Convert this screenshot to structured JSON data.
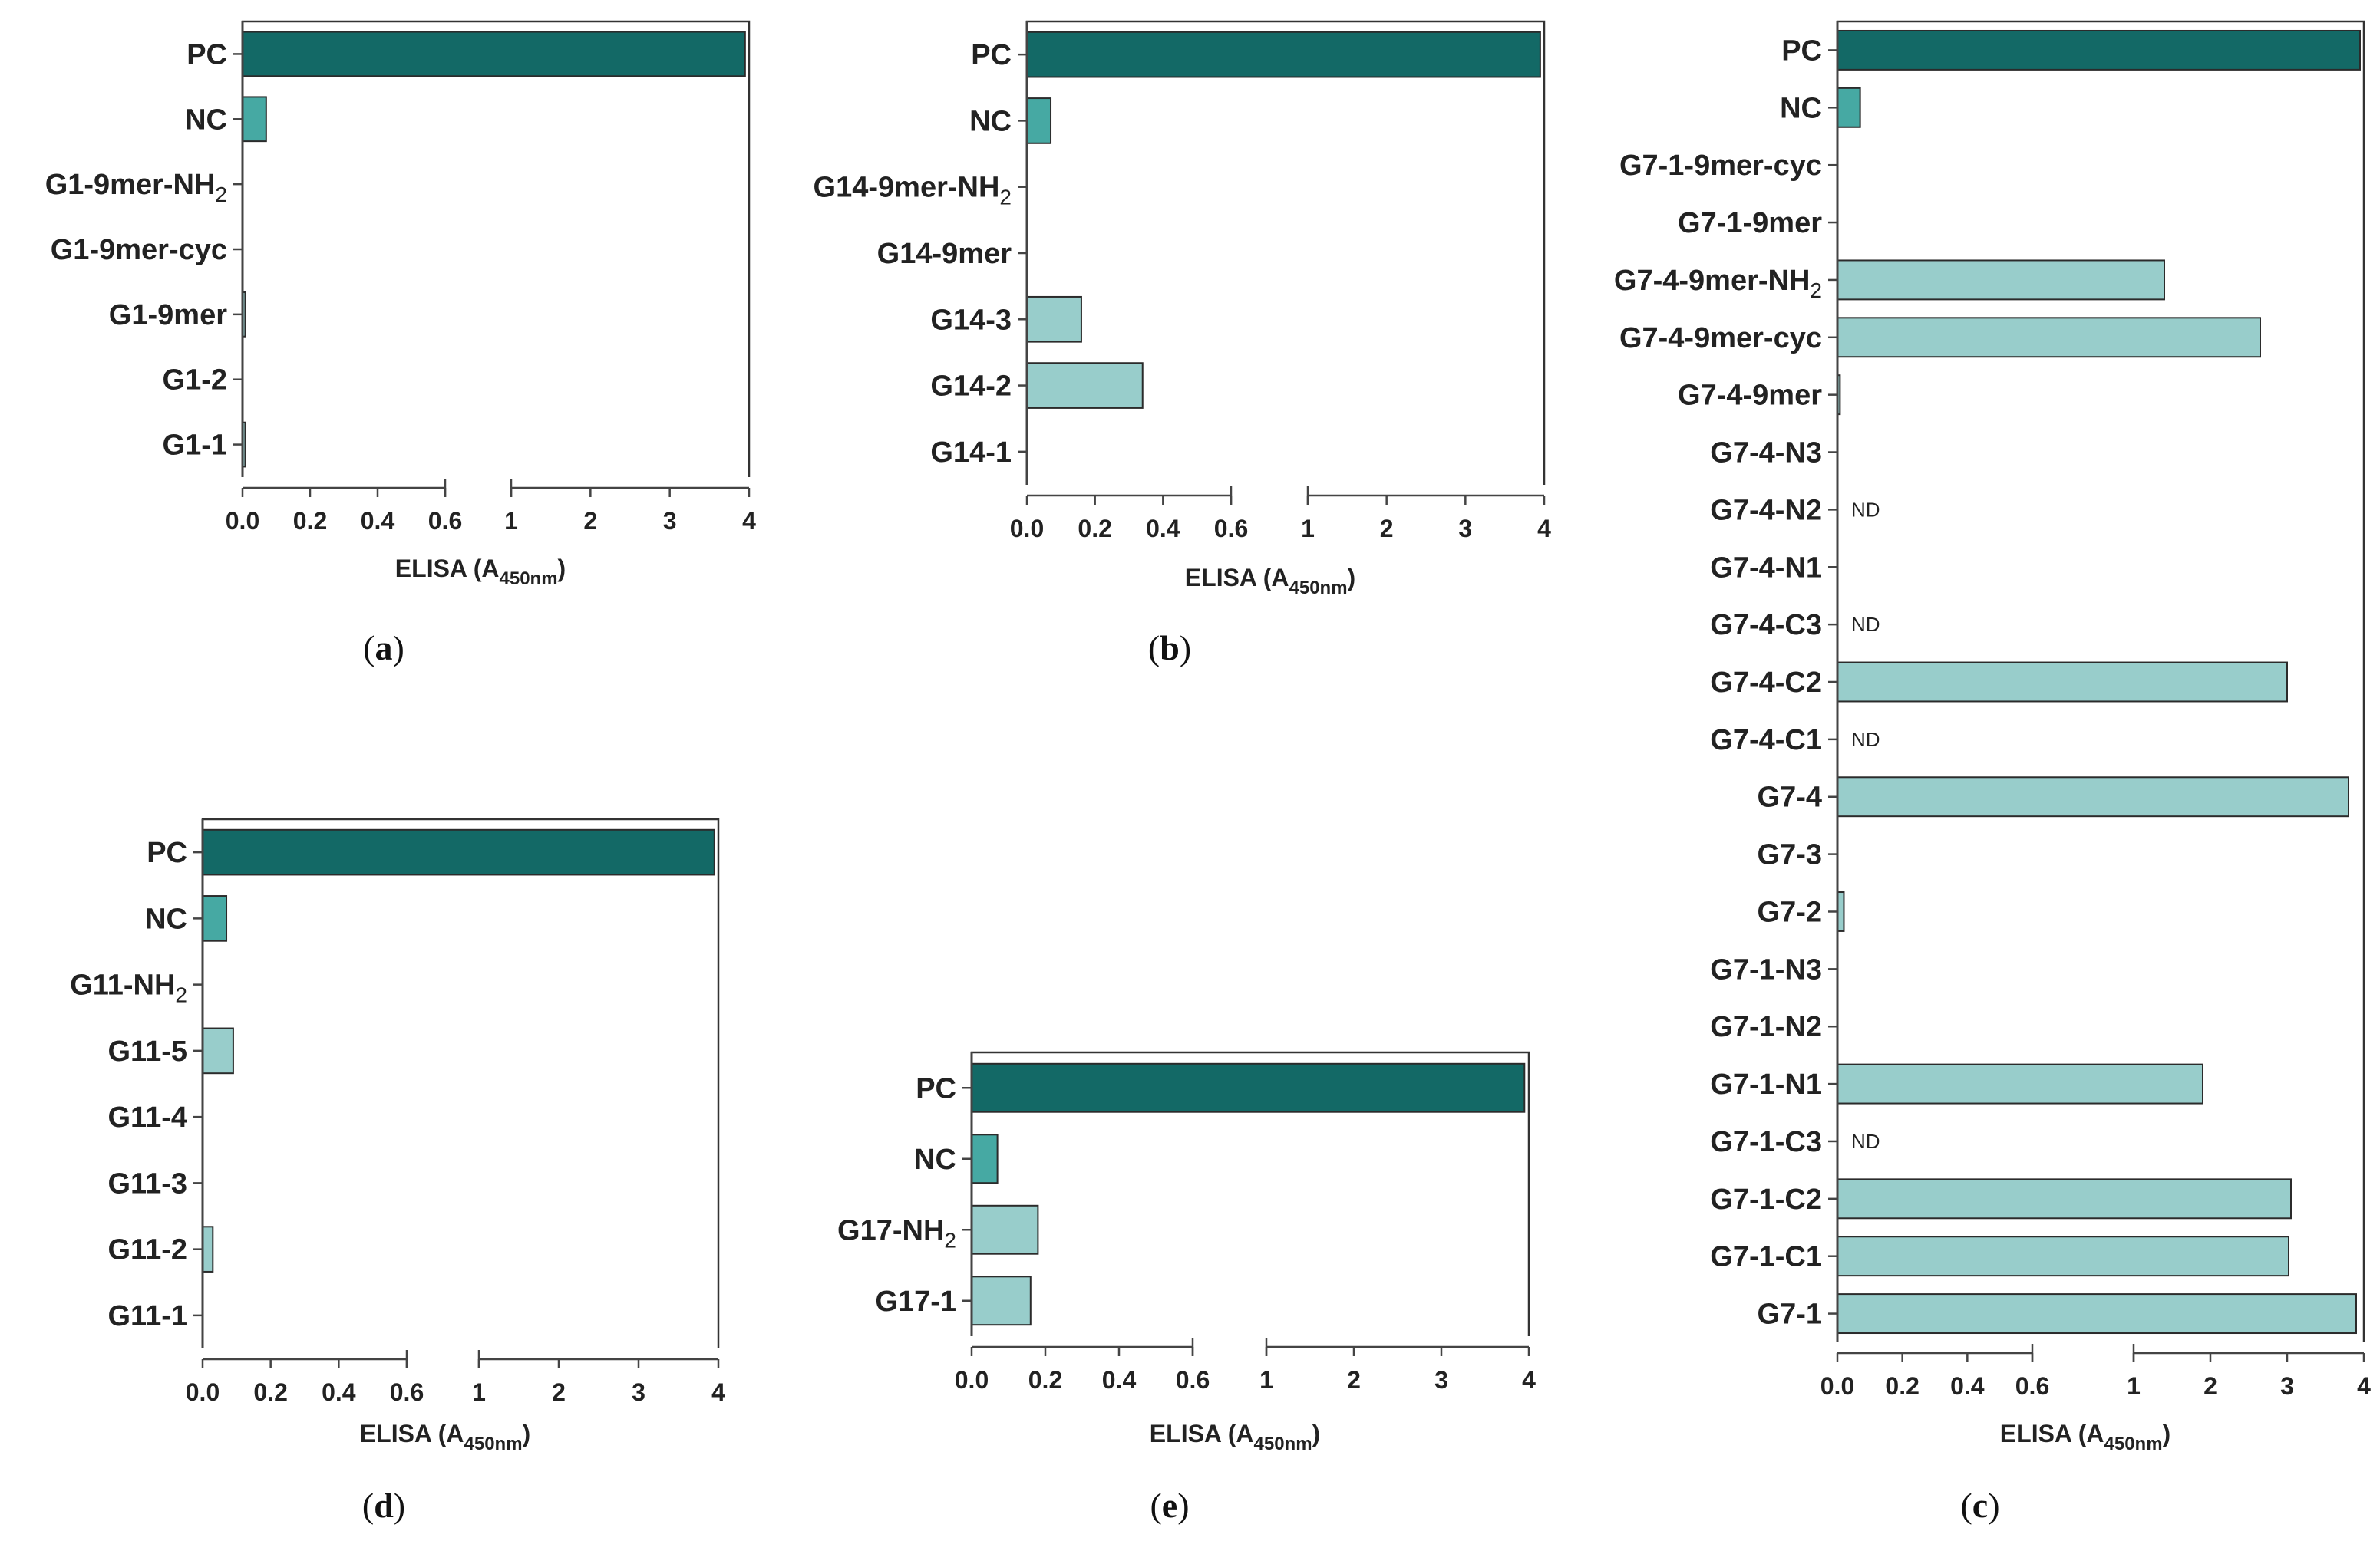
{
  "colors": {
    "pc": "#136966",
    "nc": "#46a9a3",
    "sample": "#98cdcb",
    "axis": "#444444",
    "frame": "#333333"
  },
  "axis": {
    "label_prefix": "ELISA (A",
    "label_subscript": "450nm",
    "label_suffix": ")",
    "low_ticks": [
      "0.0",
      "0.2",
      "0.4",
      "0.6"
    ],
    "high_ticks": [
      "1",
      "2",
      "3",
      "4"
    ]
  },
  "chart_data": [
    {
      "id": "a",
      "type": "bar",
      "orientation": "horizontal",
      "panel_label": "a",
      "xlabel": "ELISA (A450nm)",
      "x_scale": "broken: 0–0.6 linear, 1–4 linear",
      "categories": [
        {
          "label": "PC",
          "value": 3.95,
          "kind": "pc"
        },
        {
          "label": "NC",
          "value": 0.07,
          "kind": "nc"
        },
        {
          "label": "G1-9mer-NH",
          "sub": "2",
          "value": 0,
          "kind": "sample"
        },
        {
          "label": "G1-9mer-cyc",
          "value": 0,
          "kind": "sample"
        },
        {
          "label": "G1-9mer",
          "value": 0.008,
          "kind": "sample"
        },
        {
          "label": "G1-2",
          "value": 0,
          "kind": "sample"
        },
        {
          "label": "G1-1",
          "value": 0.008,
          "kind": "sample"
        }
      ]
    },
    {
      "id": "b",
      "type": "bar",
      "orientation": "horizontal",
      "panel_label": "b",
      "xlabel": "ELISA (A450nm)",
      "x_scale": "broken: 0–0.6 linear, 1–4 linear",
      "categories": [
        {
          "label": "PC",
          "value": 3.95,
          "kind": "pc"
        },
        {
          "label": "NC",
          "value": 0.07,
          "kind": "nc"
        },
        {
          "label": "G14-9mer-NH",
          "sub": "2",
          "value": 0,
          "kind": "sample"
        },
        {
          "label": "G14-9mer",
          "value": 0,
          "kind": "sample"
        },
        {
          "label": "G14-3",
          "value": 0.16,
          "kind": "sample"
        },
        {
          "label": "G14-2",
          "value": 0.34,
          "kind": "sample"
        },
        {
          "label": "G14-1",
          "value": 0,
          "kind": "sample"
        }
      ]
    },
    {
      "id": "c",
      "type": "bar",
      "orientation": "horizontal",
      "panel_label": "c",
      "xlabel": "ELISA (A450nm)",
      "x_scale": "broken: 0–0.6 linear, 1–4 linear",
      "categories": [
        {
          "label": "PC",
          "value": 3.95,
          "kind": "pc"
        },
        {
          "label": "NC",
          "value": 0.07,
          "kind": "nc"
        },
        {
          "label": "G7-1-9mer-cyc",
          "value": 0,
          "kind": "sample"
        },
        {
          "label": "G7-1-9mer",
          "value": 0,
          "kind": "sample"
        },
        {
          "label": "G7-4-9mer-NH",
          "sub": "2",
          "value": 1.4,
          "kind": "sample"
        },
        {
          "label": "G7-4-9mer-cyc",
          "value": 2.65,
          "kind": "sample"
        },
        {
          "label": "G7-4-9mer",
          "value": 0.008,
          "kind": "sample"
        },
        {
          "label": "G7-4-N3",
          "value": 0,
          "kind": "sample"
        },
        {
          "label": "G7-4-N2",
          "value": null,
          "note": "ND",
          "kind": "sample"
        },
        {
          "label": "G7-4-N1",
          "value": 0,
          "kind": "sample"
        },
        {
          "label": "G7-4-C3",
          "value": null,
          "note": "ND",
          "kind": "sample"
        },
        {
          "label": "G7-4-C2",
          "value": 3.0,
          "kind": "sample"
        },
        {
          "label": "G7-4-C1",
          "value": null,
          "note": "ND",
          "kind": "sample"
        },
        {
          "label": "G7-4",
          "value": 3.8,
          "kind": "sample"
        },
        {
          "label": "G7-3",
          "value": 0,
          "kind": "sample"
        },
        {
          "label": "G7-2",
          "value": 0.02,
          "kind": "sample"
        },
        {
          "label": "G7-1-N3",
          "value": 0,
          "kind": "sample"
        },
        {
          "label": "G7-1-N2",
          "value": 0,
          "kind": "sample"
        },
        {
          "label": "G7-1-N1",
          "value": 1.9,
          "kind": "sample"
        },
        {
          "label": "G7-1-C3",
          "value": null,
          "note": "ND",
          "kind": "sample"
        },
        {
          "label": "G7-1-C2",
          "value": 3.05,
          "kind": "sample"
        },
        {
          "label": "G7-1-C1",
          "value": 3.02,
          "kind": "sample"
        },
        {
          "label": "G7-1",
          "value": 3.9,
          "kind": "sample"
        }
      ]
    },
    {
      "id": "d",
      "type": "bar",
      "orientation": "horizontal",
      "panel_label": "d",
      "xlabel": "ELISA (A450nm)",
      "x_scale": "broken: 0–0.6 linear, 1–4 linear",
      "categories": [
        {
          "label": "PC",
          "value": 3.95,
          "kind": "pc"
        },
        {
          "label": "NC",
          "value": 0.07,
          "kind": "nc"
        },
        {
          "label": "G11-NH",
          "sub": "2",
          "value": 0,
          "kind": "sample"
        },
        {
          "label": "G11-5",
          "value": 0.09,
          "kind": "sample"
        },
        {
          "label": "G11-4",
          "value": 0,
          "kind": "sample"
        },
        {
          "label": "G11-3",
          "value": 0,
          "kind": "sample"
        },
        {
          "label": "G11-2",
          "value": 0.03,
          "kind": "sample"
        },
        {
          "label": "G11-1",
          "value": 0,
          "kind": "sample"
        }
      ]
    },
    {
      "id": "e",
      "type": "bar",
      "orientation": "horizontal",
      "panel_label": "e",
      "xlabel": "ELISA (A450nm)",
      "x_scale": "broken: 0–0.6 linear, 1–4 linear",
      "categories": [
        {
          "label": "PC",
          "value": 3.95,
          "kind": "pc"
        },
        {
          "label": "NC",
          "value": 0.07,
          "kind": "nc"
        },
        {
          "label": "G17-NH",
          "sub": "2",
          "value": 0.18,
          "kind": "sample"
        },
        {
          "label": "G17-1",
          "value": 0.16,
          "kind": "sample"
        }
      ]
    }
  ]
}
